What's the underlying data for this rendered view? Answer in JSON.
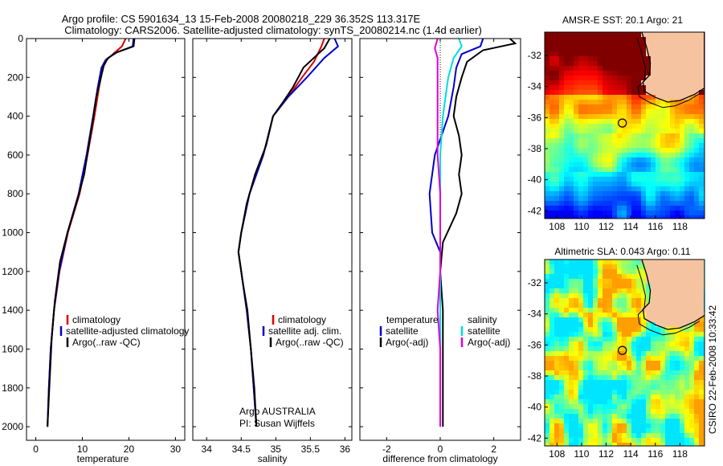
{
  "figure": {
    "title_line1": "Argo profile: CS 5901634_13 15-Feb-2008 20080218_229 36.352S 113.317E",
    "title_line2": "Climatology: CARS2006. Satellite-adjusted climatology: synTS_20080214.nc (1.4d earlier)",
    "side_caption": "CSIRO 22-Feb-2008 10:33:42"
  },
  "chart_data": [
    {
      "type": "line",
      "id": "temperature",
      "xlabel": "temperature",
      "xlim": [
        -2,
        32
      ],
      "ylim": [
        2070,
        0
      ],
      "xticks": [
        0,
        10,
        20,
        30
      ],
      "yticks": [
        0,
        200,
        400,
        600,
        800,
        1000,
        1200,
        1400,
        1600,
        1800,
        2000
      ],
      "series": [
        {
          "name": "climatology",
          "color": "#dd0000",
          "points": [
            [
              19.3,
              0
            ],
            [
              18.5,
              40
            ],
            [
              16.8,
              75
            ],
            [
              15.2,
              110
            ],
            [
              14.4,
              150
            ],
            [
              13.6,
              250
            ],
            [
              12.6,
              400
            ],
            [
              11.1,
              600
            ],
            [
              9.4,
              800
            ],
            [
              6.9,
              1000
            ],
            [
              5.1,
              1200
            ],
            [
              3.9,
              1400
            ],
            [
              3.2,
              1600
            ],
            [
              2.8,
              1800
            ],
            [
              2.5,
              2000
            ]
          ]
        },
        {
          "name": "satellite-adjusted climatology",
          "color": "#0000cc",
          "points": [
            [
              21.0,
              0
            ],
            [
              20.8,
              40
            ],
            [
              17.0,
              75
            ],
            [
              15.0,
              110
            ],
            [
              14.1,
              150
            ],
            [
              13.3,
              250
            ],
            [
              12.3,
              400
            ],
            [
              10.9,
              600
            ],
            [
              9.2,
              800
            ],
            [
              6.8,
              1000
            ],
            [
              5.0,
              1200
            ],
            [
              3.9,
              1400
            ],
            [
              3.2,
              1600
            ],
            [
              2.8,
              1800
            ],
            [
              2.5,
              2000
            ]
          ]
        },
        {
          "name": "Argo(..raw -QC)",
          "color": "#000000",
          "points": [
            [
              21.2,
              0
            ],
            [
              21.0,
              40
            ],
            [
              17.5,
              70
            ],
            [
              15.5,
              100
            ],
            [
              14.6,
              140
            ],
            [
              14.0,
              200
            ],
            [
              13.0,
              300
            ],
            [
              12.4,
              400
            ],
            [
              11.4,
              550
            ],
            [
              10.4,
              700
            ],
            [
              8.7,
              850
            ],
            [
              6.8,
              1000
            ],
            [
              5.2,
              1150
            ],
            [
              4.1,
              1350
            ],
            [
              3.4,
              1550
            ],
            [
              2.9,
              1800
            ],
            [
              2.5,
              2000
            ]
          ]
        }
      ],
      "legend": [
        "climatology",
        "satellite-adjusted climatology",
        "Argo(..raw -QC)"
      ]
    },
    {
      "type": "line",
      "id": "salinity",
      "xlabel": "salinity",
      "xlim": [
        33.8,
        36.1
      ],
      "ylim": [
        2070,
        0
      ],
      "xticks": [
        34,
        34.5,
        35,
        35.5,
        36
      ],
      "yticks": [
        0,
        200,
        400,
        600,
        800,
        1000,
        1200,
        1400,
        1600,
        1800,
        2000
      ],
      "series": [
        {
          "name": "climatology",
          "color": "#dd0000",
          "points": [
            [
              35.7,
              0
            ],
            [
              35.66,
              40
            ],
            [
              35.55,
              120
            ],
            [
              35.38,
              200
            ],
            [
              35.18,
              300
            ],
            [
              34.96,
              400
            ],
            [
              34.82,
              600
            ],
            [
              34.62,
              800
            ],
            [
              34.5,
              1000
            ],
            [
              34.46,
              1100
            ],
            [
              34.5,
              1200
            ],
            [
              34.58,
              1400
            ],
            [
              34.64,
              1600
            ],
            [
              34.68,
              1800
            ],
            [
              34.72,
              2000
            ]
          ]
        },
        {
          "name": "satellite adj. clim.",
          "color": "#0000cc",
          "points": [
            [
              35.85,
              0
            ],
            [
              35.9,
              40
            ],
            [
              35.7,
              100
            ],
            [
              35.45,
              200
            ],
            [
              35.18,
              300
            ],
            [
              34.96,
              400
            ],
            [
              34.82,
              600
            ],
            [
              34.62,
              800
            ],
            [
              34.5,
              1000
            ],
            [
              34.46,
              1100
            ],
            [
              34.5,
              1200
            ],
            [
              34.58,
              1400
            ],
            [
              34.64,
              1600
            ],
            [
              34.68,
              1800
            ],
            [
              34.72,
              2000
            ]
          ]
        },
        {
          "name": "Argo(..raw -QC)",
          "color": "#000000",
          "points": [
            [
              35.78,
              0
            ],
            [
              35.7,
              50
            ],
            [
              35.58,
              90
            ],
            [
              35.4,
              150
            ],
            [
              35.25,
              250
            ],
            [
              35.1,
              330
            ],
            [
              34.96,
              400
            ],
            [
              34.86,
              550
            ],
            [
              34.7,
              700
            ],
            [
              34.58,
              850
            ],
            [
              34.5,
              1000
            ],
            [
              34.46,
              1100
            ],
            [
              34.52,
              1250
            ],
            [
              34.59,
              1400
            ],
            [
              34.64,
              1600
            ],
            [
              34.69,
              1800
            ],
            [
              34.72,
              2000
            ]
          ]
        }
      ],
      "legend": [
        "climatology",
        "satellite adj. clim.",
        "Argo(..raw -QC)"
      ],
      "annotation_line1": "Argo AUSTRALIA",
      "annotation_line2": "PI: Susan Wijffels"
    },
    {
      "type": "line",
      "id": "difference",
      "xlabel": "difference from climatology",
      "xlim": [
        -3,
        3
      ],
      "ylim": [
        2070,
        0
      ],
      "xticks": [
        -2,
        0,
        2
      ],
      "yticks": [
        0,
        200,
        400,
        600,
        800,
        1000,
        1200,
        1400,
        1600,
        1800,
        2000
      ],
      "series": [
        {
          "name": "temperature satellite",
          "color": "#0000cc",
          "points": [
            [
              1.6,
              0
            ],
            [
              1.5,
              40
            ],
            [
              0.8,
              80
            ],
            [
              0.6,
              150
            ],
            [
              0.5,
              250
            ],
            [
              0.3,
              400
            ],
            [
              -0.2,
              600
            ],
            [
              -0.4,
              800
            ],
            [
              -0.3,
              1000
            ],
            [
              0.0,
              1100
            ],
            [
              0.0,
              1400
            ],
            [
              0.0,
              2000
            ]
          ]
        },
        {
          "name": "temperature Argo(-adj)",
          "color": "#000000",
          "points": [
            [
              2.6,
              0
            ],
            [
              2.8,
              25
            ],
            [
              1.6,
              60
            ],
            [
              1.0,
              120
            ],
            [
              0.8,
              200
            ],
            [
              0.6,
              300
            ],
            [
              0.5,
              400
            ],
            [
              0.7,
              500
            ],
            [
              0.8,
              600
            ],
            [
              0.7,
              700
            ],
            [
              0.8,
              800
            ],
            [
              0.6,
              900
            ],
            [
              0.1,
              1050
            ],
            [
              0.0,
              1200
            ],
            [
              0.1,
              1400
            ],
            [
              0.1,
              2000
            ]
          ]
        },
        {
          "name": "salinity satellite",
          "color": "#00dddd",
          "points": [
            [
              0.7,
              0
            ],
            [
              0.8,
              40
            ],
            [
              0.5,
              100
            ],
            [
              0.3,
              200
            ],
            [
              0.1,
              400
            ],
            [
              0.0,
              600
            ],
            [
              0.0,
              1000
            ],
            [
              0.0,
              2000
            ]
          ]
        },
        {
          "name": "salinity Argo(-adj)",
          "color": "#dd00dd",
          "points": [
            [
              -0.1,
              0
            ],
            [
              -0.2,
              50
            ],
            [
              -0.1,
              100
            ],
            [
              -0.1,
              200
            ],
            [
              -0.1,
              400
            ],
            [
              -0.1,
              600
            ],
            [
              0.0,
              800
            ],
            [
              0.0,
              1000
            ],
            [
              0.0,
              1200
            ],
            [
              -0.1,
              1400
            ],
            [
              0.0,
              1600
            ],
            [
              0.0,
              2000
            ]
          ]
        }
      ],
      "legend_temperature_title": "temperature",
      "legend_salinity_title": "salinity",
      "legend_temperature": [
        "satellite",
        "Argo(-adj)"
      ],
      "legend_salinity": [
        "satellite",
        "Argo(-adj)"
      ]
    },
    {
      "type": "heatmap",
      "id": "sst_map",
      "title": "AMSR-E SST: 20.1  Argo: 21",
      "xlim": [
        107,
        120
      ],
      "ylim": [
        -42.5,
        -30.5
      ],
      "xticks": [
        108,
        110,
        112,
        114,
        116,
        118
      ],
      "yticks": [
        -32,
        -34,
        -36,
        -38,
        -40,
        -42
      ],
      "marker": {
        "lon": 113.317,
        "lat": -36.352
      }
    },
    {
      "type": "heatmap",
      "id": "sla_map",
      "title": "Altimetric SLA: 0.043  Argo: 0.11",
      "xlim": [
        107,
        120
      ],
      "ylim": [
        -42.5,
        -30.5
      ],
      "xticks": [
        108,
        110,
        112,
        114,
        116,
        118
      ],
      "yticks": [
        -32,
        -34,
        -36,
        -38,
        -40,
        -42
      ],
      "marker": {
        "lon": 113.317,
        "lat": -36.352
      }
    }
  ],
  "colors": {
    "land": "#f6c3a0",
    "coast": "#000000",
    "frame": "#000000"
  }
}
